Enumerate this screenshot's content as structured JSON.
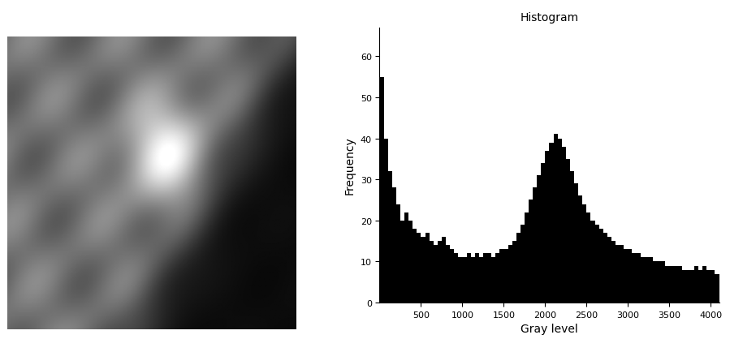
{
  "chart_data": {
    "type": "histogram",
    "title": "Histogram",
    "x_label": "Gray level",
    "y_label": "Frequency",
    "color": "#000000",
    "bins": [
      0,
      50,
      100,
      150,
      200,
      250,
      300,
      350,
      400,
      450,
      500,
      550,
      600,
      650,
      700,
      750,
      800,
      850,
      900,
      950,
      1000,
      1050,
      1100,
      1150,
      1200,
      1250,
      1300,
      1350,
      1400,
      1450,
      1500,
      1550,
      1600,
      1650,
      1700,
      1750,
      1800,
      1850,
      1900,
      1950,
      2000,
      2050,
      2100,
      2150,
      2200,
      2250,
      2300,
      2350,
      2400,
      2450,
      2500,
      2550,
      2600,
      2650,
      2700,
      2750,
      2800,
      2850,
      2900,
      2950,
      3000,
      3050,
      3100,
      3150,
      3200,
      3250,
      3300,
      3350,
      3400,
      3450,
      3500,
      3550,
      3600,
      3650,
      3700,
      3750,
      3800,
      3850,
      3900,
      3950,
      4000,
      4050,
      4100
    ],
    "values": [
      55,
      40,
      32,
      28,
      24,
      20,
      22,
      20,
      18,
      17,
      16,
      17,
      15,
      14,
      15,
      16,
      14,
      13,
      12,
      11,
      11,
      12,
      11,
      12,
      11,
      12,
      12,
      11,
      12,
      13,
      13,
      14,
      15,
      17,
      19,
      22,
      25,
      28,
      31,
      34,
      37,
      39,
      41,
      40,
      38,
      35,
      32,
      29,
      26,
      24,
      22,
      20,
      19,
      18,
      17,
      16,
      15,
      14,
      14,
      13,
      13,
      12,
      12,
      11,
      11,
      11,
      10,
      10,
      10,
      9,
      9,
      9,
      9,
      8,
      8,
      8,
      9,
      8,
      9,
      8,
      8,
      7
    ],
    "xlim": [
      0,
      4100
    ],
    "xticks": [
      500,
      1000,
      1500,
      2000,
      2500,
      3000,
      3500,
      4000
    ],
    "ylim": [
      0,
      67
    ],
    "yticks": [
      0,
      10,
      20,
      30,
      40,
      50,
      60
    ]
  }
}
